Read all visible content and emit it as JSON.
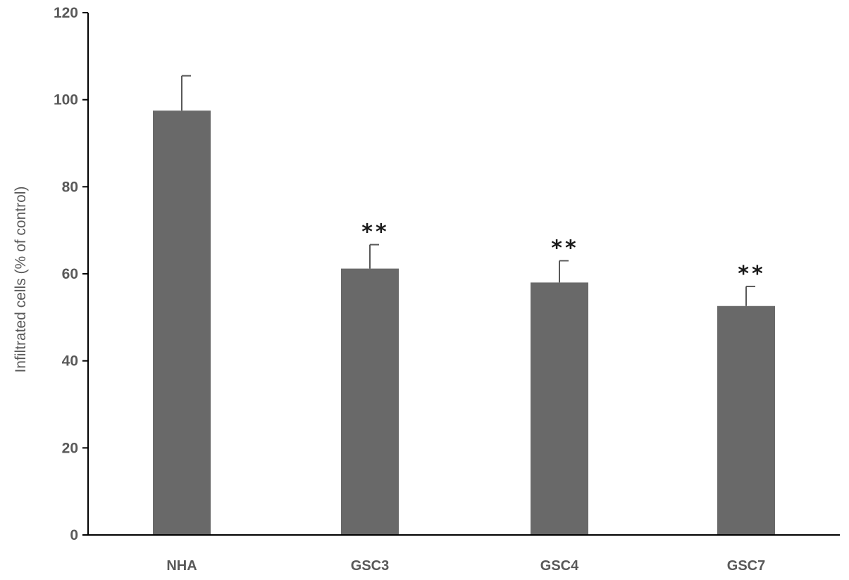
{
  "chart_data": {
    "type": "bar",
    "categories": [
      "NHA",
      "GSC3",
      "GSC4",
      "GSC7"
    ],
    "values": [
      97.5,
      61.2,
      58.0,
      52.6
    ],
    "error_upper": [
      8.0,
      5.5,
      5.0,
      4.5
    ],
    "annotations": [
      "",
      "**",
      "**",
      "**"
    ],
    "ylabel": "Infiltrated cells (% of control)",
    "xlabel": "",
    "ylim": [
      0,
      120
    ],
    "yticks": [
      0,
      20,
      40,
      60,
      80,
      100,
      120
    ],
    "grid": false,
    "bar_color": "#696969",
    "axis_color": "#000000"
  }
}
